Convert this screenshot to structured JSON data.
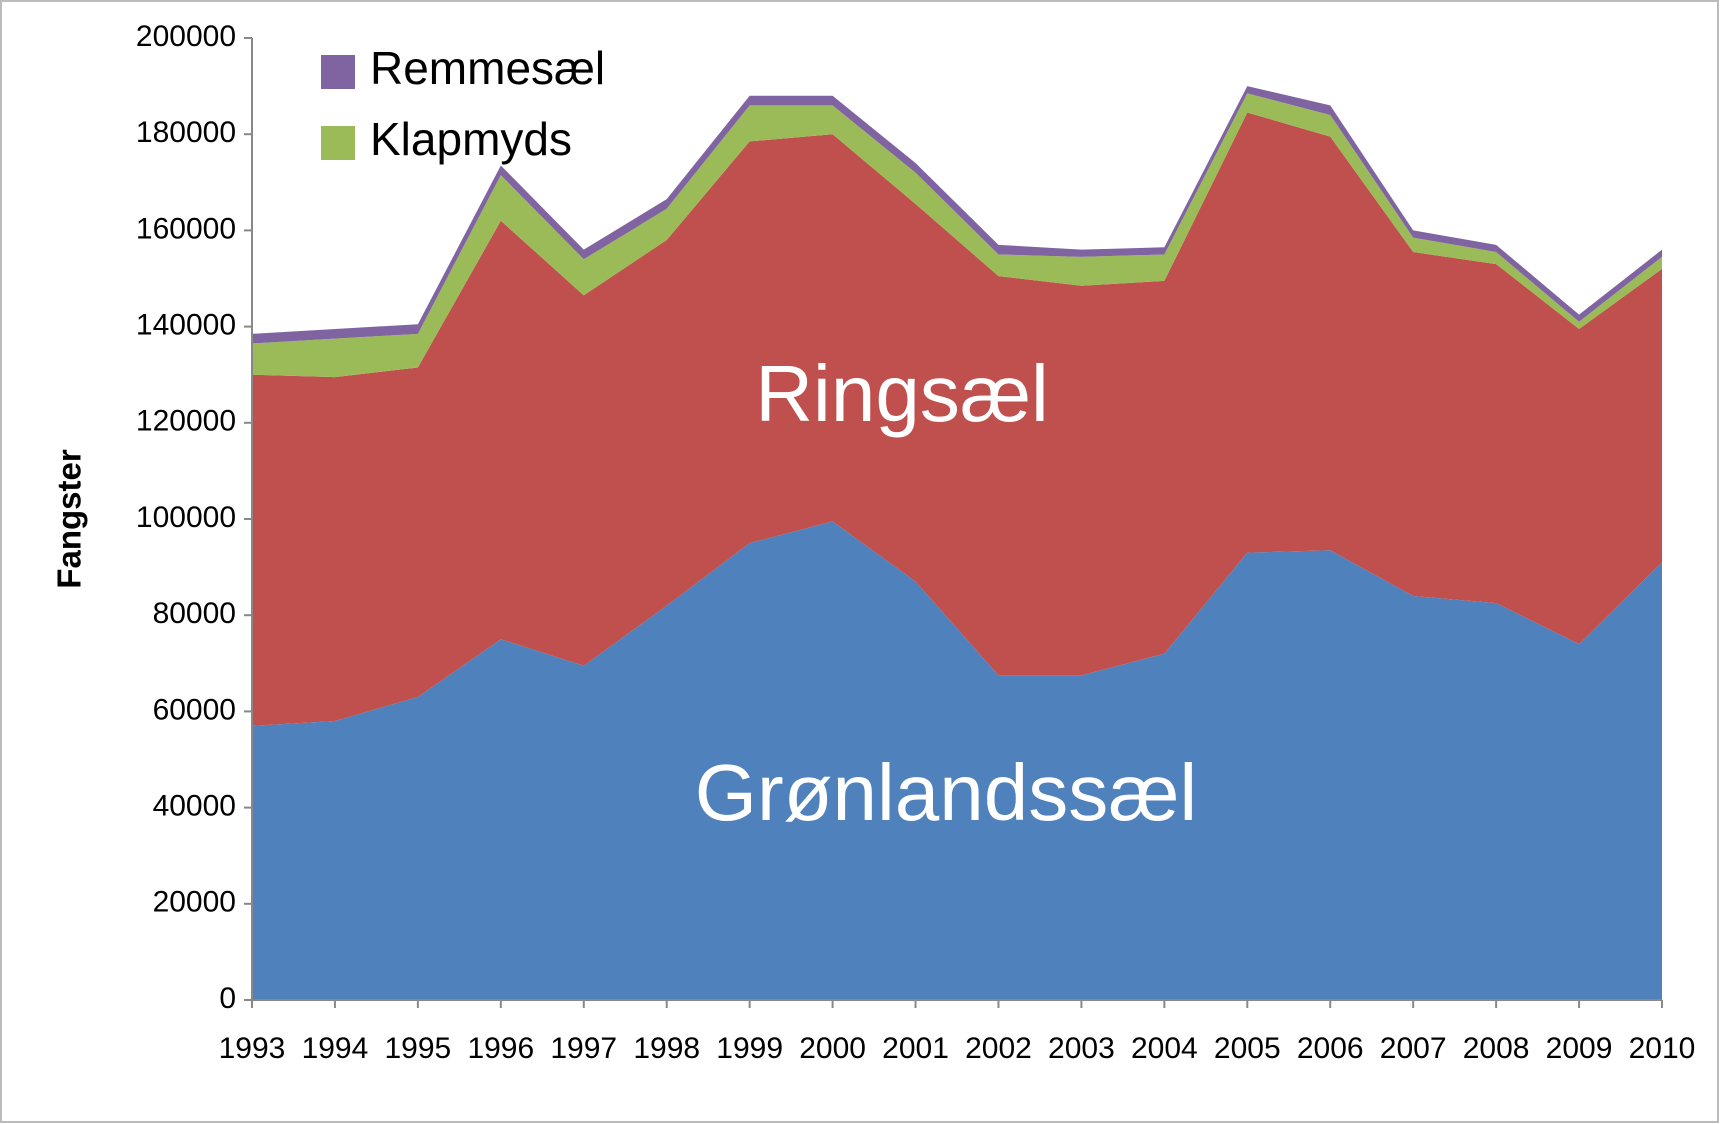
{
  "chart_data": {
    "type": "stacked_area",
    "y_label": "Fangster",
    "categories": [
      "1993",
      "1994",
      "1995",
      "1996",
      "1997",
      "1998",
      "1999",
      "2000",
      "2001",
      "2002",
      "2003",
      "2004",
      "2005",
      "2006",
      "2007",
      "2008",
      "2009",
      "2010"
    ],
    "series": [
      {
        "name": "Grønlandssæl",
        "color": "#4f81bd",
        "in_plot_label": true,
        "values": [
          57000,
          58000,
          63000,
          75000,
          69500,
          82000,
          95000,
          99500,
          87000,
          67500,
          67500,
          72000,
          93000,
          93500,
          84000,
          82500,
          74000,
          91000
        ]
      },
      {
        "name": "Ringsæl",
        "color": "#c0504d",
        "in_plot_label": true,
        "values": [
          73000,
          71500,
          68500,
          87000,
          77000,
          76000,
          83500,
          80500,
          78500,
          83000,
          81000,
          77500,
          91500,
          86000,
          71500,
          70500,
          65500,
          61000
        ]
      },
      {
        "name": "Klapmyds",
        "color": "#9bbb59",
        "in_plot_label": false,
        "values": [
          6500,
          8000,
          7000,
          9500,
          7500,
          6500,
          7500,
          6000,
          6500,
          4500,
          6000,
          5500,
          4000,
          4500,
          3000,
          2500,
          1500,
          2500
        ]
      },
      {
        "name": "Remmesæl",
        "color": "#8064a2",
        "in_plot_label": false,
        "values": [
          2000,
          2000,
          2000,
          2000,
          2000,
          2000,
          2000,
          2000,
          2000,
          2000,
          1500,
          1500,
          1500,
          2000,
          1500,
          1500,
          1500,
          1500
        ]
      }
    ],
    "ylim": [
      0,
      200000
    ],
    "yticks": [
      0,
      20000,
      40000,
      60000,
      80000,
      100000,
      120000,
      140000,
      160000,
      180000,
      200000
    ],
    "legend": "upper left"
  }
}
